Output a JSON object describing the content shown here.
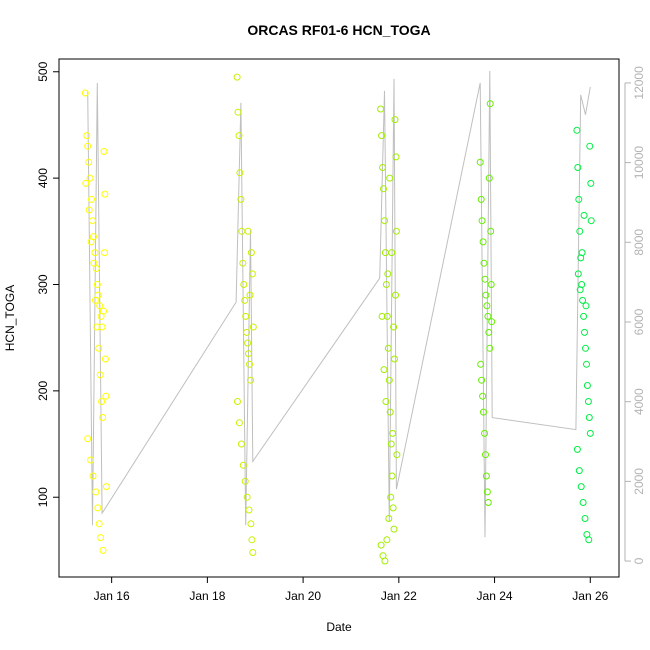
{
  "chart_data": {
    "type": "scatter",
    "title": "ORCAS RF01-6 HCN_TOGA",
    "xlabel": "Date",
    "ylabel": "HCN_TOGA",
    "x_ticks": [
      "Jan 16",
      "Jan 18",
      "Jan 20",
      "Jan 22",
      "Jan 24",
      "Jan 26"
    ],
    "x_tick_days": [
      16,
      18,
      20,
      22,
      24,
      26
    ],
    "xlim_days": [
      14.9,
      26.6
    ],
    "ylim": [
      25,
      512
    ],
    "y_ticks": [
      100,
      200,
      300,
      400,
      500
    ],
    "y2_ticks": [
      0,
      2000,
      4000,
      6000,
      8000,
      10000,
      12000
    ],
    "y2lim": [
      -400,
      12600
    ],
    "grid": false,
    "legend": "none",
    "colors": {
      "flight_1": "#ffff00",
      "flight_2": "#ccf000",
      "flight_3": "#a2ee00",
      "flight_4": "#66ee00",
      "flight_5": "#33ff33",
      "flight_6": "#00ee44",
      "altitude_line": "#bfbfbf",
      "axis": "#000000"
    },
    "altitude_trace": [
      {
        "x": 15.5,
        "y2": 11800
      },
      {
        "x": 15.6,
        "y2": 900
      },
      {
        "x": 15.7,
        "y2": 12000
      },
      {
        "x": 15.8,
        "y2": 1200
      },
      {
        "x": 18.6,
        "y2": 6500
      },
      {
        "x": 18.7,
        "y2": 11500
      },
      {
        "x": 18.8,
        "y2": 900
      },
      {
        "x": 18.9,
        "y2": 8300
      },
      {
        "x": 18.95,
        "y2": 2500
      },
      {
        "x": 21.6,
        "y2": 7100
      },
      {
        "x": 21.7,
        "y2": 11800
      },
      {
        "x": 21.8,
        "y2": 1000
      },
      {
        "x": 21.9,
        "y2": 12100
      },
      {
        "x": 21.95,
        "y2": 1800
      },
      {
        "x": 23.7,
        "y2": 12000
      },
      {
        "x": 23.8,
        "y2": 600
      },
      {
        "x": 23.9,
        "y2": 12300
      },
      {
        "x": 23.95,
        "y2": 3600
      },
      {
        "x": 25.7,
        "y2": 3300
      },
      {
        "x": 25.8,
        "y2": 11700
      },
      {
        "x": 25.9,
        "y2": 11200
      },
      {
        "x": 26.0,
        "y2": 11900
      }
    ],
    "series": [
      {
        "color": "#ffff00",
        "points": [
          {
            "x": 15.45,
            "y": 480
          },
          {
            "x": 15.48,
            "y": 440
          },
          {
            "x": 15.5,
            "y": 430
          },
          {
            "x": 15.52,
            "y": 415
          },
          {
            "x": 15.55,
            "y": 400
          },
          {
            "x": 15.58,
            "y": 380
          },
          {
            "x": 15.6,
            "y": 360
          },
          {
            "x": 15.62,
            "y": 345
          },
          {
            "x": 15.65,
            "y": 330
          },
          {
            "x": 15.68,
            "y": 315
          },
          {
            "x": 15.7,
            "y": 300
          },
          {
            "x": 15.72,
            "y": 290
          },
          {
            "x": 15.75,
            "y": 280
          },
          {
            "x": 15.78,
            "y": 270
          },
          {
            "x": 15.8,
            "y": 260
          },
          {
            "x": 15.46,
            "y": 395
          },
          {
            "x": 15.53,
            "y": 370
          },
          {
            "x": 15.57,
            "y": 340
          },
          {
            "x": 15.63,
            "y": 320
          },
          {
            "x": 15.66,
            "y": 285
          },
          {
            "x": 15.69,
            "y": 260
          },
          {
            "x": 15.73,
            "y": 240
          },
          {
            "x": 15.76,
            "y": 215
          },
          {
            "x": 15.79,
            "y": 190
          },
          {
            "x": 15.81,
            "y": 175
          },
          {
            "x": 15.5,
            "y": 155
          },
          {
            "x": 15.56,
            "y": 135
          },
          {
            "x": 15.61,
            "y": 120
          },
          {
            "x": 15.67,
            "y": 105
          },
          {
            "x": 15.71,
            "y": 90
          },
          {
            "x": 15.74,
            "y": 75
          },
          {
            "x": 15.77,
            "y": 62
          },
          {
            "x": 15.82,
            "y": 50
          },
          {
            "x": 15.84,
            "y": 425
          },
          {
            "x": 15.86,
            "y": 385
          },
          {
            "x": 15.85,
            "y": 330
          },
          {
            "x": 15.83,
            "y": 275
          },
          {
            "x": 15.87,
            "y": 230
          },
          {
            "x": 15.88,
            "y": 195
          },
          {
            "x": 15.89,
            "y": 110
          }
        ]
      },
      {
        "color": "#ccf000",
        "points": [
          {
            "x": 18.62,
            "y": 495
          },
          {
            "x": 18.64,
            "y": 462
          },
          {
            "x": 18.66,
            "y": 440
          },
          {
            "x": 18.68,
            "y": 405
          },
          {
            "x": 18.7,
            "y": 380
          },
          {
            "x": 18.72,
            "y": 350
          },
          {
            "x": 18.74,
            "y": 320
          },
          {
            "x": 18.76,
            "y": 300
          },
          {
            "x": 18.78,
            "y": 285
          },
          {
            "x": 18.8,
            "y": 270
          },
          {
            "x": 18.82,
            "y": 255
          },
          {
            "x": 18.84,
            "y": 245
          },
          {
            "x": 18.86,
            "y": 235
          },
          {
            "x": 18.88,
            "y": 225
          },
          {
            "x": 18.9,
            "y": 210
          },
          {
            "x": 18.63,
            "y": 190
          },
          {
            "x": 18.67,
            "y": 170
          },
          {
            "x": 18.71,
            "y": 150
          },
          {
            "x": 18.75,
            "y": 130
          },
          {
            "x": 18.79,
            "y": 115
          },
          {
            "x": 18.83,
            "y": 100
          },
          {
            "x": 18.87,
            "y": 88
          },
          {
            "x": 18.91,
            "y": 75
          },
          {
            "x": 18.93,
            "y": 60
          },
          {
            "x": 18.95,
            "y": 48
          },
          {
            "x": 18.92,
            "y": 330
          },
          {
            "x": 18.94,
            "y": 310
          },
          {
            "x": 18.96,
            "y": 260
          },
          {
            "x": 18.85,
            "y": 350
          },
          {
            "x": 18.89,
            "y": 290
          }
        ]
      },
      {
        "color": "#a2ee00",
        "points": [
          {
            "x": 21.62,
            "y": 465
          },
          {
            "x": 21.64,
            "y": 440
          },
          {
            "x": 21.66,
            "y": 410
          },
          {
            "x": 21.68,
            "y": 390
          },
          {
            "x": 21.7,
            "y": 360
          },
          {
            "x": 21.72,
            "y": 330
          },
          {
            "x": 21.74,
            "y": 300
          },
          {
            "x": 21.76,
            "y": 270
          },
          {
            "x": 21.78,
            "y": 240
          },
          {
            "x": 21.8,
            "y": 210
          },
          {
            "x": 21.82,
            "y": 180
          },
          {
            "x": 21.84,
            "y": 150
          },
          {
            "x": 21.86,
            "y": 120
          },
          {
            "x": 21.88,
            "y": 90
          },
          {
            "x": 21.9,
            "y": 70
          },
          {
            "x": 21.63,
            "y": 55
          },
          {
            "x": 21.67,
            "y": 45
          },
          {
            "x": 21.71,
            "y": 40
          },
          {
            "x": 21.75,
            "y": 60
          },
          {
            "x": 21.79,
            "y": 80
          },
          {
            "x": 21.83,
            "y": 100
          },
          {
            "x": 21.87,
            "y": 160
          },
          {
            "x": 21.91,
            "y": 230
          },
          {
            "x": 21.93,
            "y": 290
          },
          {
            "x": 21.95,
            "y": 350
          },
          {
            "x": 21.94,
            "y": 420
          },
          {
            "x": 21.92,
            "y": 455
          },
          {
            "x": 21.65,
            "y": 270
          },
          {
            "x": 21.69,
            "y": 220
          },
          {
            "x": 21.73,
            "y": 190
          },
          {
            "x": 21.77,
            "y": 310
          },
          {
            "x": 21.81,
            "y": 400
          },
          {
            "x": 21.85,
            "y": 330
          },
          {
            "x": 21.89,
            "y": 260
          },
          {
            "x": 21.96,
            "y": 140
          }
        ]
      },
      {
        "color": "#66ee00",
        "points": [
          {
            "x": 23.7,
            "y": 415
          },
          {
            "x": 23.72,
            "y": 380
          },
          {
            "x": 23.74,
            "y": 360
          },
          {
            "x": 23.76,
            "y": 340
          },
          {
            "x": 23.78,
            "y": 320
          },
          {
            "x": 23.8,
            "y": 305
          },
          {
            "x": 23.82,
            "y": 290
          },
          {
            "x": 23.84,
            "y": 280
          },
          {
            "x": 23.86,
            "y": 270
          },
          {
            "x": 23.88,
            "y": 255
          },
          {
            "x": 23.9,
            "y": 240
          },
          {
            "x": 23.71,
            "y": 225
          },
          {
            "x": 23.73,
            "y": 210
          },
          {
            "x": 23.75,
            "y": 195
          },
          {
            "x": 23.77,
            "y": 180
          },
          {
            "x": 23.79,
            "y": 160
          },
          {
            "x": 23.81,
            "y": 140
          },
          {
            "x": 23.83,
            "y": 120
          },
          {
            "x": 23.85,
            "y": 105
          },
          {
            "x": 23.87,
            "y": 95
          },
          {
            "x": 23.89,
            "y": 400
          },
          {
            "x": 23.91,
            "y": 470
          },
          {
            "x": 23.92,
            "y": 350
          },
          {
            "x": 23.93,
            "y": 300
          },
          {
            "x": 23.94,
            "y": 265
          }
        ]
      },
      {
        "color": "#00ee44",
        "points": [
          {
            "x": 25.72,
            "y": 445
          },
          {
            "x": 25.74,
            "y": 410
          },
          {
            "x": 25.76,
            "y": 380
          },
          {
            "x": 25.78,
            "y": 350
          },
          {
            "x": 25.8,
            "y": 325
          },
          {
            "x": 25.82,
            "y": 300
          },
          {
            "x": 25.84,
            "y": 285
          },
          {
            "x": 25.86,
            "y": 270
          },
          {
            "x": 25.88,
            "y": 255
          },
          {
            "x": 25.9,
            "y": 240
          },
          {
            "x": 25.92,
            "y": 225
          },
          {
            "x": 25.94,
            "y": 205
          },
          {
            "x": 25.96,
            "y": 190
          },
          {
            "x": 25.98,
            "y": 175
          },
          {
            "x": 26.0,
            "y": 160
          },
          {
            "x": 25.73,
            "y": 145
          },
          {
            "x": 25.77,
            "y": 125
          },
          {
            "x": 25.81,
            "y": 110
          },
          {
            "x": 25.85,
            "y": 95
          },
          {
            "x": 25.89,
            "y": 80
          },
          {
            "x": 25.93,
            "y": 65
          },
          {
            "x": 25.97,
            "y": 60
          },
          {
            "x": 25.99,
            "y": 430
          },
          {
            "x": 26.01,
            "y": 395
          },
          {
            "x": 26.02,
            "y": 360
          },
          {
            "x": 25.75,
            "y": 310
          },
          {
            "x": 25.79,
            "y": 295
          },
          {
            "x": 25.83,
            "y": 330
          },
          {
            "x": 25.87,
            "y": 365
          },
          {
            "x": 25.91,
            "y": 280
          }
        ]
      }
    ]
  }
}
